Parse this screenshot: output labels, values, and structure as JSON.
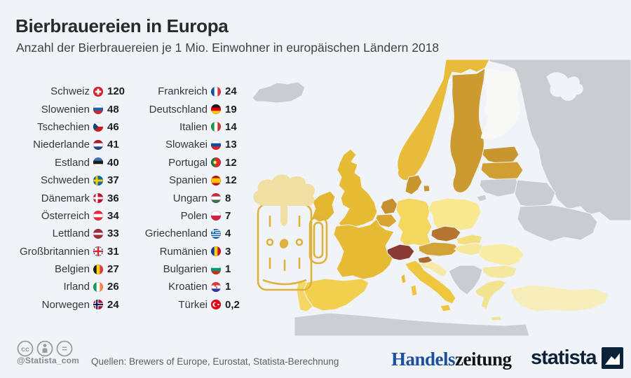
{
  "header": {
    "title": "Bierbrauereien in Europa",
    "subtitle": "Anzahl der Bierbrauereien je 1 Mio. Einwohner in europäischen Ländern 2018"
  },
  "chart_data": {
    "type": "heatmap",
    "subtype": "choropleth-map-europe",
    "title": "Bierbrauereien in Europa",
    "subtitle": "Anzahl der Bierbrauereien je 1 Mio. Einwohner in europäischen Ländern 2018",
    "unit": "Brauereien je 1 Mio. Einwohner",
    "categories": [
      "Schweiz",
      "Slowenien",
      "Tschechien",
      "Niederlande",
      "Estland",
      "Schweden",
      "Dänemark",
      "Österreich",
      "Lettland",
      "Großbritannien",
      "Belgien",
      "Irland",
      "Norwegen",
      "Frankreich",
      "Deutschland",
      "Italien",
      "Slowakei",
      "Portugal",
      "Spanien",
      "Ungarn",
      "Polen",
      "Griechenland",
      "Rumänien",
      "Bulgarien",
      "Kroatien",
      "Türkei"
    ],
    "values": [
      120,
      48,
      46,
      41,
      40,
      37,
      36,
      34,
      33,
      31,
      27,
      26,
      24,
      24,
      19,
      14,
      13,
      12,
      12,
      8,
      7,
      4,
      3,
      1,
      1,
      0.2
    ],
    "legend_position": "none",
    "color_low": "#f6edbb",
    "color_high": "#8a3b33",
    "no_data_color": "#c9ccd0"
  },
  "list": {
    "columns": [
      {
        "items": [
          {
            "country": "Schweiz",
            "value": "120",
            "flag": "ch"
          },
          {
            "country": "Slowenien",
            "value": "48",
            "flag": "si"
          },
          {
            "country": "Tschechien",
            "value": "46",
            "flag": "cz"
          },
          {
            "country": "Niederlande",
            "value": "41",
            "flag": "nl"
          },
          {
            "country": "Estland",
            "value": "40",
            "flag": "ee"
          },
          {
            "country": "Schweden",
            "value": "37",
            "flag": "se"
          },
          {
            "country": "Dänemark",
            "value": "36",
            "flag": "dk"
          },
          {
            "country": "Österreich",
            "value": "34",
            "flag": "at"
          },
          {
            "country": "Lettland",
            "value": "33",
            "flag": "lv"
          },
          {
            "country": "Großbritannien",
            "value": "31",
            "flag": "gb"
          },
          {
            "country": "Belgien",
            "value": "27",
            "flag": "be"
          },
          {
            "country": "Irland",
            "value": "26",
            "flag": "ie"
          },
          {
            "country": "Norwegen",
            "value": "24",
            "flag": "no"
          }
        ]
      },
      {
        "items": [
          {
            "country": "Frankreich",
            "value": "24",
            "flag": "fr"
          },
          {
            "country": "Deutschland",
            "value": "19",
            "flag": "de"
          },
          {
            "country": "Italien",
            "value": "14",
            "flag": "it"
          },
          {
            "country": "Slowakei",
            "value": "13",
            "flag": "sk"
          },
          {
            "country": "Portugal",
            "value": "12",
            "flag": "pt"
          },
          {
            "country": "Spanien",
            "value": "12",
            "flag": "es"
          },
          {
            "country": "Ungarn",
            "value": "8",
            "flag": "hu"
          },
          {
            "country": "Polen",
            "value": "7",
            "flag": "pl"
          },
          {
            "country": "Griechenland",
            "value": "4",
            "flag": "gr"
          },
          {
            "country": "Rumänien",
            "value": "3",
            "flag": "ro"
          },
          {
            "country": "Bulgarien",
            "value": "1",
            "flag": "bg"
          },
          {
            "country": "Kroatien",
            "value": "1",
            "flag": "hr"
          },
          {
            "country": "Türkei",
            "value": "0,2",
            "flag": "tr"
          }
        ]
      }
    ]
  },
  "flags": {
    "ch": {
      "type": "swiss",
      "colors": [
        "#d8232a",
        "#ffffff"
      ]
    },
    "si": {
      "type": "h",
      "colors": [
        "#ffffff",
        "#2a5fa5",
        "#d8232a"
      ]
    },
    "cz": {
      "type": "cz",
      "colors": [
        "#ffffff",
        "#d7141a",
        "#11457e"
      ]
    },
    "nl": {
      "type": "h",
      "colors": [
        "#ae1c28",
        "#ffffff",
        "#21468b"
      ]
    },
    "ee": {
      "type": "h",
      "colors": [
        "#2f78c6",
        "#1a1a1a",
        "#ffffff"
      ]
    },
    "se": {
      "type": "nordic",
      "colors": [
        "#0d6aa8",
        "#fecc00"
      ]
    },
    "dk": {
      "type": "nordic",
      "colors": [
        "#c8102e",
        "#ffffff"
      ]
    },
    "at": {
      "type": "h",
      "colors": [
        "#ed2939",
        "#ffffff",
        "#ed2939"
      ]
    },
    "lv": {
      "type": "hw",
      "colors": [
        [
          "#9e3039",
          2
        ],
        [
          "#ffffff",
          1
        ],
        [
          "#9e3039",
          2
        ]
      ]
    },
    "gb": {
      "type": "uk",
      "colors": [
        "#1a3b8e",
        "#ffffff",
        "#d8232a"
      ]
    },
    "be": {
      "type": "v",
      "colors": [
        "#1a1a1a",
        "#f7d618",
        "#ef3340"
      ]
    },
    "ie": {
      "type": "v",
      "colors": [
        "#169b62",
        "#ffffff",
        "#ff883e"
      ]
    },
    "no": {
      "type": "nordic3",
      "colors": [
        "#ba0c2f",
        "#ffffff",
        "#00205b"
      ]
    },
    "fr": {
      "type": "v",
      "colors": [
        "#0b53a8",
        "#ffffff",
        "#e4313e"
      ]
    },
    "de": {
      "type": "h",
      "colors": [
        "#1a1a1a",
        "#dd0000",
        "#ffce00"
      ]
    },
    "it": {
      "type": "v",
      "colors": [
        "#1c9a49",
        "#ffffff",
        "#d0312d"
      ]
    },
    "sk": {
      "type": "h",
      "colors": [
        "#ffffff",
        "#0b4ea2",
        "#ee1c25"
      ]
    },
    "pt": {
      "type": "pt",
      "colors": [
        "#1d7a3c",
        "#dd2c2c",
        "#f6d32d"
      ]
    },
    "es": {
      "type": "hw",
      "colors": [
        [
          "#c60b1e",
          1
        ],
        [
          "#ffc400",
          2
        ],
        [
          "#c60b1e",
          1
        ]
      ]
    },
    "hu": {
      "type": "h",
      "colors": [
        "#cd2a3e",
        "#ffffff",
        "#436f4d"
      ]
    },
    "pl": {
      "type": "h",
      "colors": [
        "#ffffff",
        "#d4213d"
      ]
    },
    "gr": {
      "type": "gr",
      "colors": [
        "#0d5eaf",
        "#ffffff"
      ]
    },
    "ro": {
      "type": "v",
      "colors": [
        "#123d9e",
        "#fcd116",
        "#ce1126"
      ]
    },
    "bg": {
      "type": "h",
      "colors": [
        "#ffffff",
        "#009b74",
        "#d62612"
      ]
    },
    "hr": {
      "type": "hr",
      "colors": [
        "#e03a3a",
        "#ffffff",
        "#2a3a9e"
      ]
    },
    "tr": {
      "type": "tr",
      "colors": [
        "#e30a17",
        "#ffffff"
      ]
    }
  },
  "map": {
    "background": "#f0f3f8",
    "no_data": "#c9ccd0",
    "africa": "#cbced2",
    "fills": {
      "ch": "#8a3b33",
      "cz": "#b4762e",
      "si": "#ad692e",
      "nl": "#c68e2c",
      "ee": "#c9952e",
      "se": "#cd9a2f",
      "dk": "#c9952d",
      "at": "#d2a337",
      "lv": "#d09e31",
      "gb": "#e7bb34",
      "be": "#d9a530",
      "ie": "#e4b52f",
      "no": "#e8bc3a",
      "fr": "#e6ba33",
      "de": "#f4d75f",
      "it": "#eec73e",
      "sk": "#f2de7c",
      "pt": "#f5d766",
      "es": "#f2cf4d",
      "hu": "#f7e79b",
      "pl": "#f8e88f",
      "gr": "#f2e391",
      "ro": "#f8eca4",
      "bg": "#f4e7a0",
      "hr": "#f7eaa8",
      "tr": "#f6edbb",
      "fi": "#f8f9f7",
      "is": "#c9ccd0",
      "ru": "#c9ccd0",
      "lt": "#c9ccd0",
      "by": "#c9ccd0",
      "ua": "#c9ccd0",
      "balkan": "#c9ccd0",
      "kal": "#c9ccd0",
      "africa": "#cbced2"
    }
  },
  "illustration": {
    "outline": "#dfb23c",
    "foam": "#f0dfa2"
  },
  "footer": {
    "handle": "@Statista_com",
    "sources": "Quellen: Brewers of Europe, Eurostat, Statista-Berechnung",
    "handelszeitung_blue": "Handels",
    "handelszeitung_black": "zeitung",
    "statista": "statista",
    "statista_navy": "#0b2239",
    "icon_color": "#989ca1"
  }
}
